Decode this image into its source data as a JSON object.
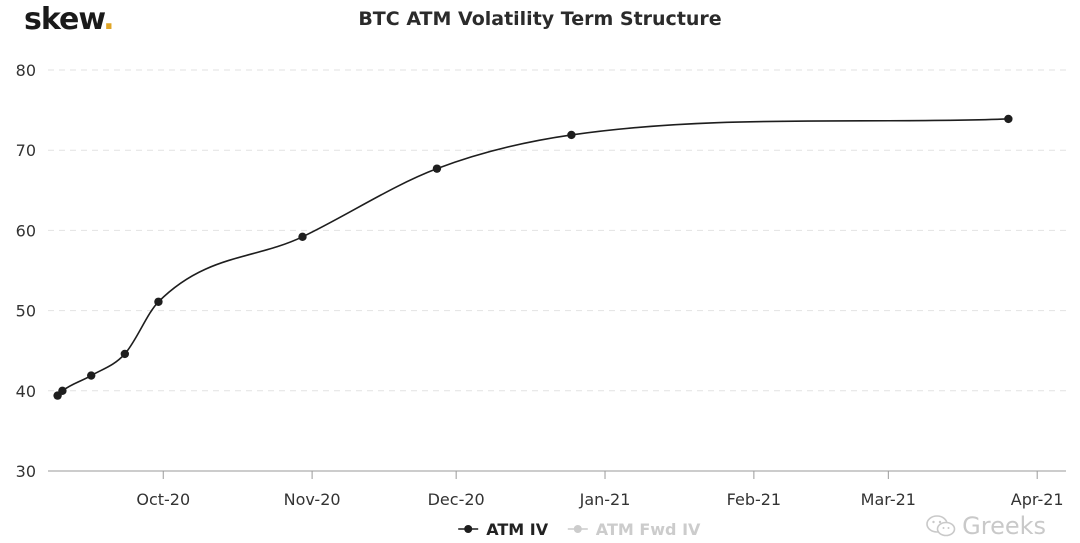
{
  "brand": {
    "name": "skew",
    "dot": ".",
    "accent": "#e0a526"
  },
  "watermark": {
    "text": "Greeks",
    "icon": "wechat-icon"
  },
  "chart_data": {
    "type": "line",
    "title": "BTC ATM Volatility Term Structure",
    "xlabel": "",
    "ylabel": "",
    "ylim": [
      30,
      80
    ],
    "yticks": [
      30,
      40,
      50,
      60,
      70,
      80
    ],
    "xlim": [
      "2020-09-07",
      "2021-04-07"
    ],
    "xticks": [
      {
        "date": "2020-10-01",
        "label": "Oct-20"
      },
      {
        "date": "2020-11-01",
        "label": "Nov-20"
      },
      {
        "date": "2020-12-01",
        "label": "Dec-20"
      },
      {
        "date": "2021-01-01",
        "label": "Jan-21"
      },
      {
        "date": "2021-02-01",
        "label": "Feb-21"
      },
      {
        "date": "2021-03-01",
        "label": "Mar-21"
      },
      {
        "date": "2021-04-01",
        "label": "Apr-21"
      }
    ],
    "grid": {
      "y": true,
      "x": false
    },
    "legend_position": "bottom-center",
    "series": [
      {
        "name": "ATM IV",
        "color": "#1e1e1e",
        "active": true,
        "points": [
          {
            "x": "2020-09-09",
            "y": 39.4
          },
          {
            "x": "2020-09-10",
            "y": 40.0
          },
          {
            "x": "2020-09-16",
            "y": 41.9
          },
          {
            "x": "2020-09-23",
            "y": 44.6
          },
          {
            "x": "2020-09-30",
            "y": 51.1
          },
          {
            "x": "2020-10-30",
            "y": 59.2
          },
          {
            "x": "2020-11-27",
            "y": 67.7
          },
          {
            "x": "2020-12-25",
            "y": 71.9
          },
          {
            "x": "2021-03-26",
            "y": 73.9
          }
        ]
      },
      {
        "name": "ATM Fwd IV",
        "color": "#cccccc",
        "active": false,
        "points": []
      }
    ]
  }
}
